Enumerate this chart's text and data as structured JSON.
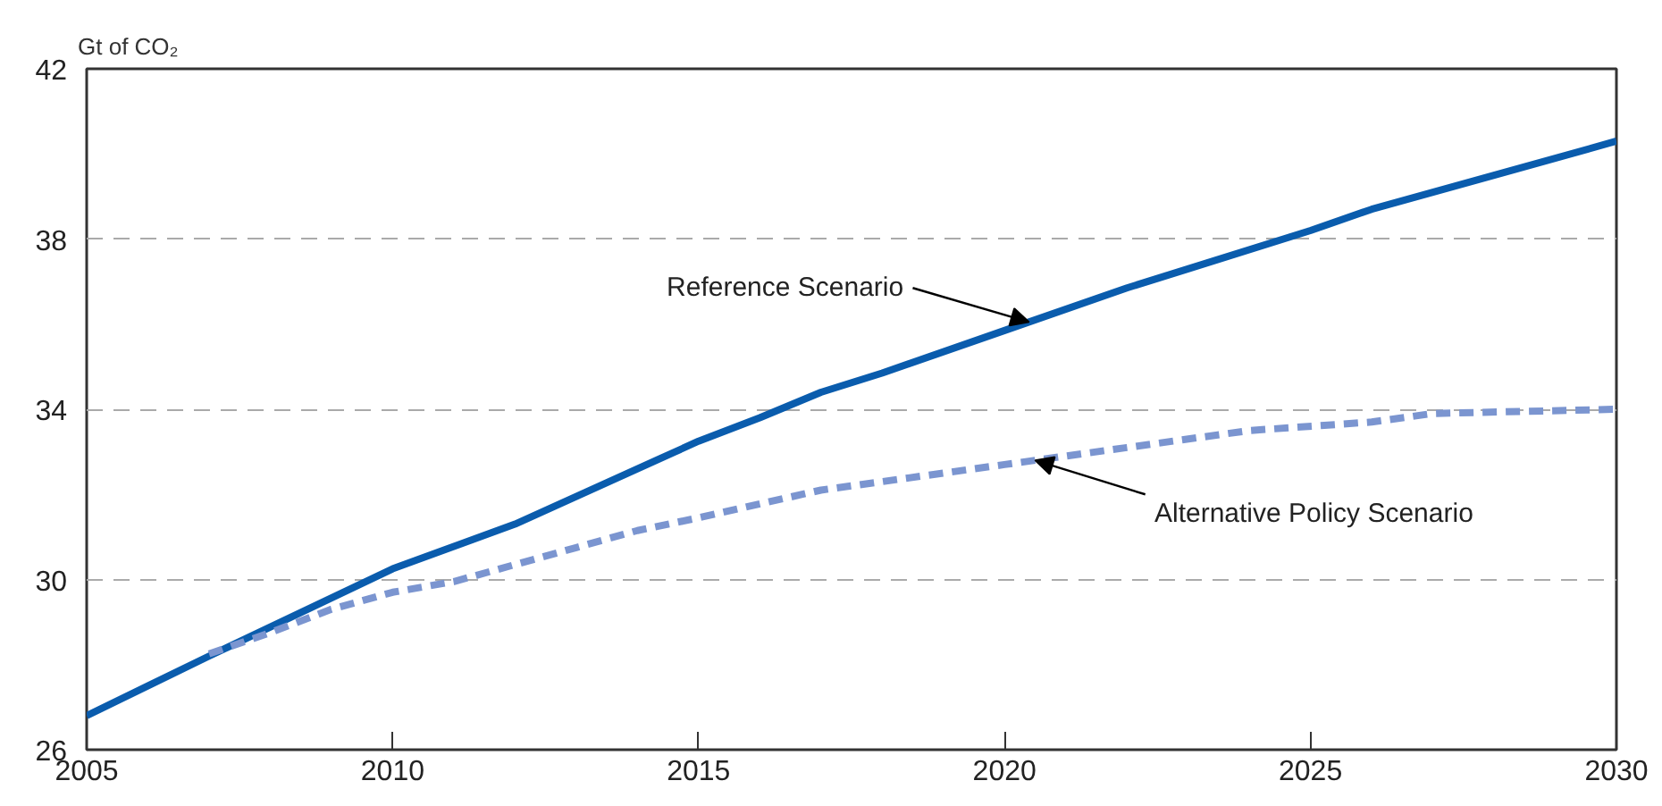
{
  "chart_data": {
    "type": "line",
    "ylabel": "Gt of CO₂",
    "xlim": [
      2005,
      2030
    ],
    "xticks": [
      2005,
      2010,
      2015,
      2020,
      2025,
      2030
    ],
    "ylim": [
      26,
      42
    ],
    "yticks": [
      26,
      30,
      34,
      38,
      42
    ],
    "grid": "y",
    "line_style": "solid",
    "series": [
      {
        "color": "#0a5cad",
        "x": [
          2005,
          2007,
          2010,
          2012,
          2015,
          2016,
          2017,
          2018,
          2020,
          2022,
          2023,
          2025,
          2026,
          2028,
          2030
        ],
        "values": [
          26.8,
          28.2,
          30.25,
          31.3,
          33.25,
          33.8,
          34.4,
          34.85,
          35.85,
          36.85,
          37.3,
          38.2,
          38.7,
          39.5,
          40.3
        ]
      },
      {
        "color": "#7b95d0",
        "line_style": "dashed",
        "x": [
          2007,
          2008,
          2009,
          2010,
          2011,
          2013,
          2014,
          2015,
          2017,
          2020,
          2022,
          2024,
          2026,
          2027,
          2030
        ],
        "values": [
          28.25,
          28.75,
          29.3,
          29.7,
          29.95,
          30.75,
          31.15,
          31.45,
          32.1,
          32.7,
          33.1,
          33.5,
          33.7,
          33.9,
          34.0
        ]
      }
    ],
    "annotations": [
      {
        "text": "Reference Scenario",
        "x": 2020.4,
        "y": 36.05
      },
      {
        "text": "Alternative Policy Scenario",
        "x": 2020.5,
        "y": 32.8
      }
    ]
  }
}
